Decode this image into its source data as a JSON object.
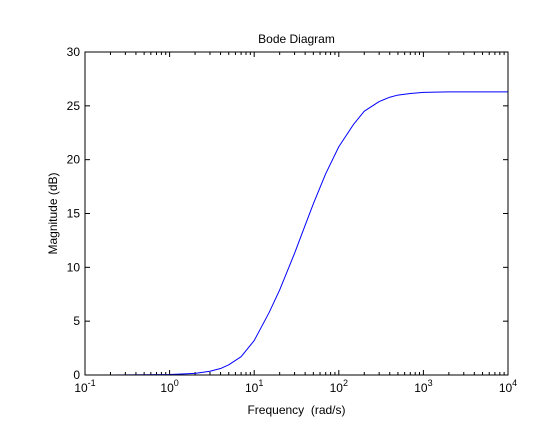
{
  "chart_data": {
    "type": "line",
    "title": "Bode Diagram",
    "xlabel": "Frequency  (rad/s)",
    "ylabel": "Magnitude (dB)",
    "xscale": "log",
    "xlim": [
      0.1,
      10000
    ],
    "ylim": [
      0,
      30
    ],
    "grid": false,
    "legend": null,
    "x_ticks": [
      {
        "value": 0.1,
        "base": "10",
        "exp": "-1"
      },
      {
        "value": 1,
        "base": "10",
        "exp": "0"
      },
      {
        "value": 10,
        "base": "10",
        "exp": "1"
      },
      {
        "value": 100,
        "base": "10",
        "exp": "2"
      },
      {
        "value": 1000,
        "base": "10",
        "exp": "3"
      },
      {
        "value": 10000,
        "base": "10",
        "exp": "4"
      }
    ],
    "y_ticks": [
      {
        "value": 0,
        "label": "0"
      },
      {
        "value": 5,
        "label": "5"
      },
      {
        "value": 10,
        "label": "10"
      },
      {
        "value": 15,
        "label": "15"
      },
      {
        "value": 20,
        "label": "20"
      },
      {
        "value": 25,
        "label": "25"
      },
      {
        "value": 30,
        "label": "30"
      }
    ],
    "series": [
      {
        "color": "#0000ff",
        "x": [
          0.1,
          0.2,
          0.5,
          1,
          1.5,
          2,
          3,
          4,
          5,
          7,
          10,
          15,
          20,
          30,
          40,
          50,
          70,
          100,
          150,
          200,
          300,
          400,
          500,
          700,
          1000,
          2000,
          5000,
          10000
        ],
        "y": [
          0.0,
          0.0,
          0.02,
          0.05,
          0.1,
          0.15,
          0.35,
          0.6,
          0.95,
          1.7,
          3.2,
          5.8,
          7.9,
          11.3,
          13.9,
          15.9,
          18.7,
          21.2,
          23.3,
          24.5,
          25.4,
          25.8,
          26.0,
          26.15,
          26.25,
          26.3,
          26.3,
          26.3
        ]
      }
    ]
  }
}
